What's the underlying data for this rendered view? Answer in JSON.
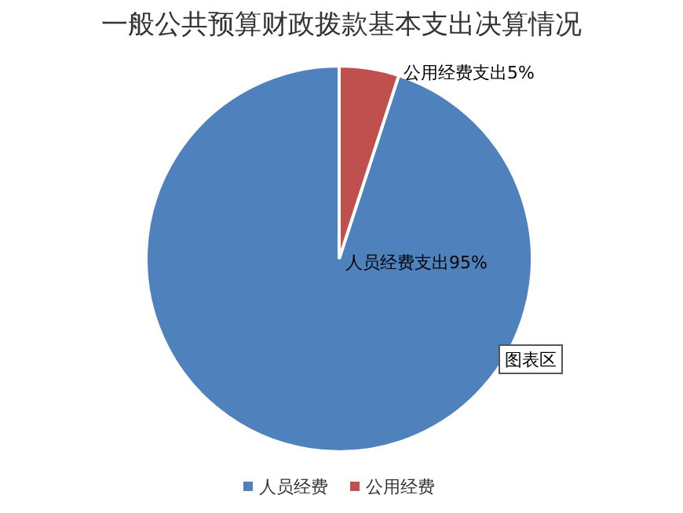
{
  "chart_data": {
    "type": "pie",
    "title": "一般公共预算财政拨款基本支出决算情况",
    "categories": [
      "人员经费",
      "公用经费"
    ],
    "values": [
      95,
      5
    ],
    "colors": [
      "#4f81bd",
      "#c0504d"
    ],
    "value_labels": [
      "人员经费支出95%",
      "公用经费支出5%"
    ],
    "legend": "bottom",
    "annotations": [
      "图表区"
    ]
  }
}
